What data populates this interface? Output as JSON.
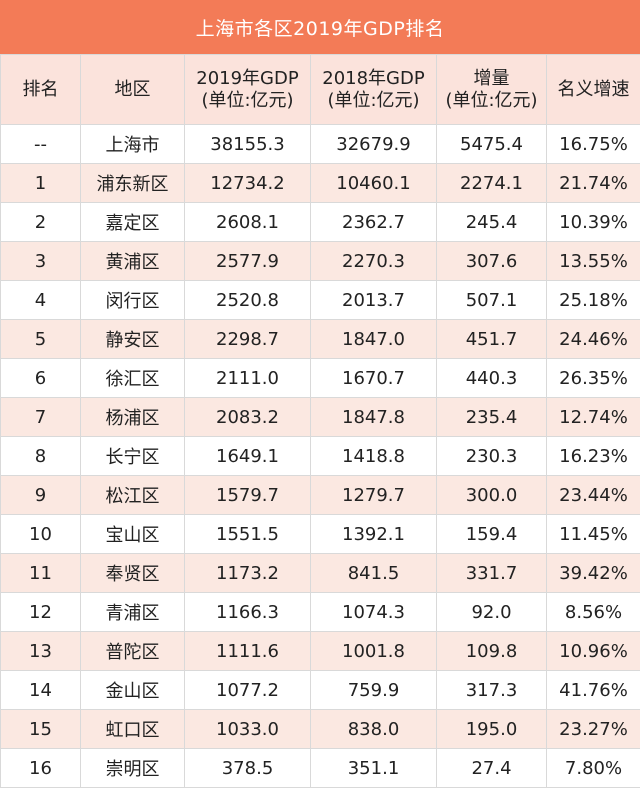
{
  "title": "上海市各区2019年GDP排名",
  "headers": {
    "rank": "排名",
    "district": "地区",
    "gdp2019_line1": "2019年GDP",
    "gdp2019_line2": "(单位:亿元)",
    "gdp2018_line1": "2018年GDP",
    "gdp2018_line2": "(单位:亿元)",
    "increase_line1": "增量",
    "increase_line2": "(单位:亿元)",
    "growth": "名义增速"
  },
  "rows": [
    {
      "rank": "--",
      "district": "上海市",
      "gdp2019": "38155.3",
      "gdp2018": "32679.9",
      "increase": "5475.4",
      "growth": "16.75%"
    },
    {
      "rank": "1",
      "district": "浦东新区",
      "gdp2019": "12734.2",
      "gdp2018": "10460.1",
      "increase": "2274.1",
      "growth": "21.74%"
    },
    {
      "rank": "2",
      "district": "嘉定区",
      "gdp2019": "2608.1",
      "gdp2018": "2362.7",
      "increase": "245.4",
      "growth": "10.39%"
    },
    {
      "rank": "3",
      "district": "黄浦区",
      "gdp2019": "2577.9",
      "gdp2018": "2270.3",
      "increase": "307.6",
      "growth": "13.55%"
    },
    {
      "rank": "4",
      "district": "闵行区",
      "gdp2019": "2520.8",
      "gdp2018": "2013.7",
      "increase": "507.1",
      "growth": "25.18%"
    },
    {
      "rank": "5",
      "district": "静安区",
      "gdp2019": "2298.7",
      "gdp2018": "1847.0",
      "increase": "451.7",
      "growth": "24.46%"
    },
    {
      "rank": "6",
      "district": "徐汇区",
      "gdp2019": "2111.0",
      "gdp2018": "1670.7",
      "increase": "440.3",
      "growth": "26.35%"
    },
    {
      "rank": "7",
      "district": "杨浦区",
      "gdp2019": "2083.2",
      "gdp2018": "1847.8",
      "increase": "235.4",
      "growth": "12.74%"
    },
    {
      "rank": "8",
      "district": "长宁区",
      "gdp2019": "1649.1",
      "gdp2018": "1418.8",
      "increase": "230.3",
      "growth": "16.23%"
    },
    {
      "rank": "9",
      "district": "松江区",
      "gdp2019": "1579.7",
      "gdp2018": "1279.7",
      "increase": "300.0",
      "growth": "23.44%"
    },
    {
      "rank": "10",
      "district": "宝山区",
      "gdp2019": "1551.5",
      "gdp2018": "1392.1",
      "increase": "159.4",
      "growth": "11.45%"
    },
    {
      "rank": "11",
      "district": "奉贤区",
      "gdp2019": "1173.2",
      "gdp2018": "841.5",
      "increase": "331.7",
      "growth": "39.42%"
    },
    {
      "rank": "12",
      "district": "青浦区",
      "gdp2019": "1166.3",
      "gdp2018": "1074.3",
      "increase": "92.0",
      "growth": "8.56%"
    },
    {
      "rank": "13",
      "district": "普陀区",
      "gdp2019": "1111.6",
      "gdp2018": "1001.8",
      "increase": "109.8",
      "growth": "10.96%"
    },
    {
      "rank": "14",
      "district": "金山区",
      "gdp2019": "1077.2",
      "gdp2018": "759.9",
      "increase": "317.3",
      "growth": "41.76%"
    },
    {
      "rank": "15",
      "district": "虹口区",
      "gdp2019": "1033.0",
      "gdp2018": "838.0",
      "increase": "195.0",
      "growth": "23.27%"
    },
    {
      "rank": "16",
      "district": "崇明区",
      "gdp2019": "378.5",
      "gdp2018": "351.1",
      "increase": "27.4",
      "growth": "7.80%"
    }
  ],
  "colors": {
    "title_bg": "#f37b57",
    "header_bg": "#fbe3dc",
    "stripe_bg": "#fbe8e1",
    "border": "#d9d9d9"
  }
}
